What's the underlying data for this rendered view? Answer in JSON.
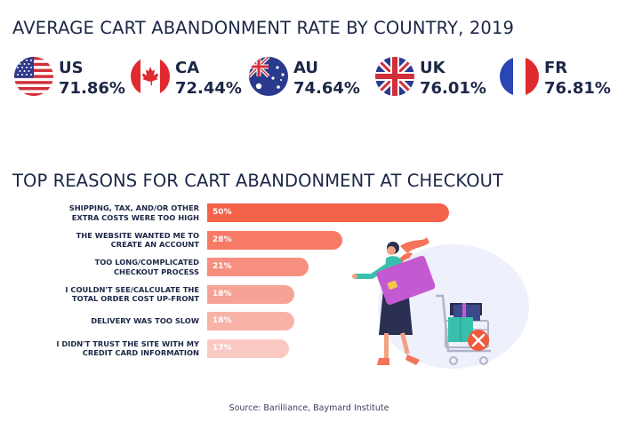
{
  "title": "AVERAGE CART ABANDONMENT RATE BY COUNTRY, 2019",
  "countries": [
    {
      "code": "US",
      "value": "71.86%",
      "flag": "us-flag-icon"
    },
    {
      "code": "CA",
      "value": "72.44%",
      "flag": "canada-flag-icon"
    },
    {
      "code": "AU",
      "value": "74.64%",
      "flag": "australia-flag-icon"
    },
    {
      "code": "UK",
      "value": "76.01%",
      "flag": "uk-flag-icon"
    },
    {
      "code": "FR",
      "value": "76.81%",
      "flag": "france-flag-icon"
    }
  ],
  "subtitle": "TOP REASONS FOR CART ABANDONMENT AT CHECKOUT",
  "source": "Source: Barilliance, Baymard Institute",
  "colors": {
    "bars": [
      "#f4624a",
      "#f67a66",
      "#f68f7f",
      "#f6a295",
      "#f8b3a8",
      "#fac9c1"
    ],
    "text": "#1c2747"
  },
  "chart_data": {
    "type": "bar",
    "orientation": "horizontal",
    "categories": [
      "SHIPPING, TAX, AND/OR OTHER EXTRA COSTS WERE TOO HIGH",
      "THE WEBSITE WANTED ME TO CREATE AN ACCOUNT",
      "TOO LONG/COMPLICATED CHECKOUT PROCESS",
      "I COULDN'T SEE/CALCULATE THE TOTAL ORDER COST UP-FRONT",
      "DELIVERY WAS TOO SLOW",
      "I DIDN'T TRUST THE SITE WITH MY CREDIT CARD INFORMATION"
    ],
    "label_lines": [
      [
        "SHIPPING, TAX, AND/OR OTHER",
        "EXTRA COSTS WERE TOO HIGH"
      ],
      [
        "THE WEBSITE WANTED ME TO",
        "CREATE AN ACCOUNT"
      ],
      [
        "TOO LONG/COMPLICATED",
        "CHECKOUT PROCESS"
      ],
      [
        "I COULDN'T SEE/CALCULATE THE",
        "TOTAL ORDER COST UP-FRONT"
      ],
      [
        "DELIVERY WAS TOO SLOW"
      ],
      [
        "I DIDN'T TRUST THE SITE WITH MY",
        "CREDIT CARD INFORMATION"
      ]
    ],
    "values": [
      50,
      28,
      21,
      18,
      18,
      17
    ],
    "value_labels": [
      "50%",
      "28%",
      "21%",
      "18%",
      "18%",
      "17%"
    ],
    "xlim": [
      0,
      50
    ],
    "grid": false,
    "legend": "none"
  }
}
